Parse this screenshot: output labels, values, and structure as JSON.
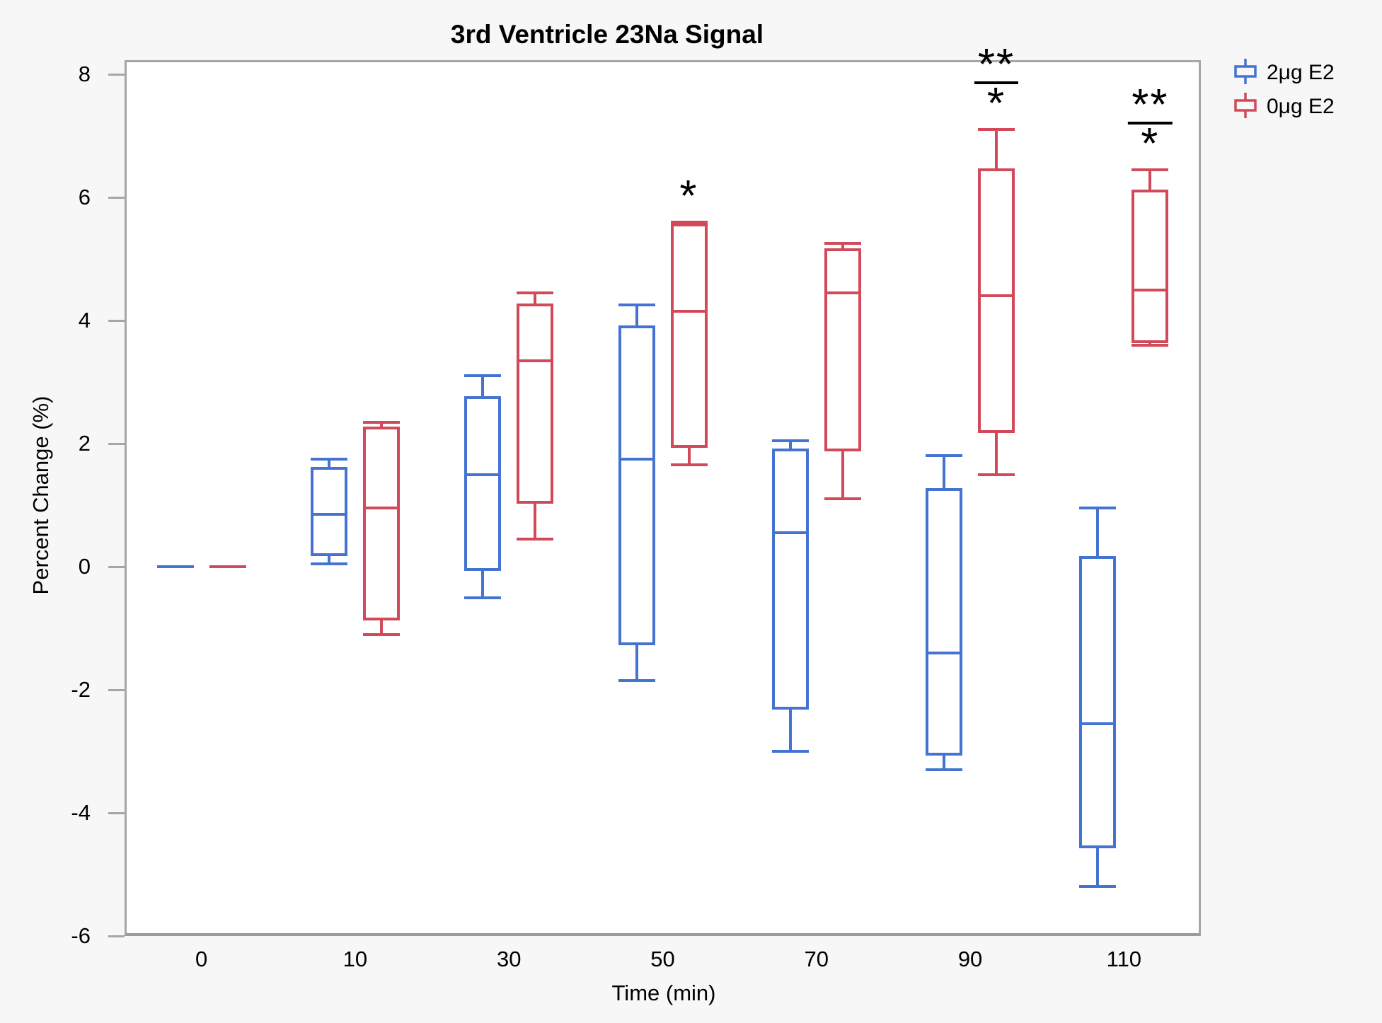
{
  "title": "3rd Ventricle 23Na Signal",
  "x_axis": {
    "label": "Time (min)",
    "ticks": [
      "0",
      "10",
      "30",
      "50",
      "70",
      "90",
      "110"
    ]
  },
  "y_axis": {
    "label": "Percent Change (%)",
    "ticks": [
      "8",
      "6",
      "4",
      "2",
      "0",
      "-2",
      "-4",
      "-6"
    ],
    "min": -6,
    "max": 8
  },
  "legend": [
    {
      "name": "2μg E2",
      "color": "#4473D2",
      "icon": "boxplot-glyph"
    },
    {
      "name": "0μg E2",
      "color": "#D2495A",
      "icon": "boxplot-glyph"
    }
  ],
  "chart_data": {
    "type": "boxplot",
    "title": "3rd Ventricle 23Na Signal",
    "xlabel": "Time (min)",
    "ylabel": "Percent Change (%)",
    "ylim": [
      -6,
      8
    ],
    "grid": false,
    "legend_position": "top-right",
    "categories": [
      0,
      10,
      30,
      50,
      70,
      90,
      110
    ],
    "series": [
      {
        "name": "2μg E2",
        "color": "#4473D2",
        "boxes": [
          {
            "whisker_low": 0,
            "q1": 0,
            "median": 0,
            "q3": 0,
            "whisker_high": 0
          },
          {
            "whisker_low": 0.05,
            "q1": 0.2,
            "median": 0.85,
            "q3": 1.6,
            "whisker_high": 1.75
          },
          {
            "whisker_low": -0.5,
            "q1": -0.05,
            "median": 1.5,
            "q3": 2.75,
            "whisker_high": 3.1
          },
          {
            "whisker_low": -1.85,
            "q1": -1.25,
            "median": 1.75,
            "q3": 3.9,
            "whisker_high": 4.25
          },
          {
            "whisker_low": -3.0,
            "q1": -2.3,
            "median": 0.55,
            "q3": 1.9,
            "whisker_high": 2.05
          },
          {
            "whisker_low": -3.3,
            "q1": -3.05,
            "median": -1.4,
            "q3": 1.25,
            "whisker_high": 1.8
          },
          {
            "whisker_low": -5.2,
            "q1": -4.55,
            "median": -2.55,
            "q3": 0.15,
            "whisker_high": 0.95
          }
        ]
      },
      {
        "name": "0μg E2",
        "color": "#D2495A",
        "boxes": [
          {
            "whisker_low": 0,
            "q1": 0,
            "median": 0,
            "q3": 0,
            "whisker_high": 0
          },
          {
            "whisker_low": -1.1,
            "q1": -0.85,
            "median": 0.95,
            "q3": 2.25,
            "whisker_high": 2.35
          },
          {
            "whisker_low": 0.45,
            "q1": 1.05,
            "median": 3.35,
            "q3": 4.25,
            "whisker_high": 4.45
          },
          {
            "whisker_low": 1.65,
            "q1": 1.95,
            "median": 4.15,
            "q3": 5.55,
            "whisker_high": 5.6
          },
          {
            "whisker_low": 1.1,
            "q1": 1.9,
            "median": 4.45,
            "q3": 5.15,
            "whisker_high": 5.25
          },
          {
            "whisker_low": 1.5,
            "q1": 2.2,
            "median": 4.4,
            "q3": 6.45,
            "whisker_high": 7.1
          },
          {
            "whisker_low": 3.6,
            "q1": 3.65,
            "median": 4.5,
            "q3": 6.1,
            "whisker_high": 6.45
          }
        ]
      }
    ],
    "annotations": [
      {
        "category": 50,
        "labels": [
          "*"
        ],
        "underline_first": false
      },
      {
        "category": 90,
        "labels": [
          "**",
          "*"
        ],
        "underline_first": true
      },
      {
        "category": 110,
        "labels": [
          "**",
          "*"
        ],
        "underline_first": true
      }
    ]
  }
}
